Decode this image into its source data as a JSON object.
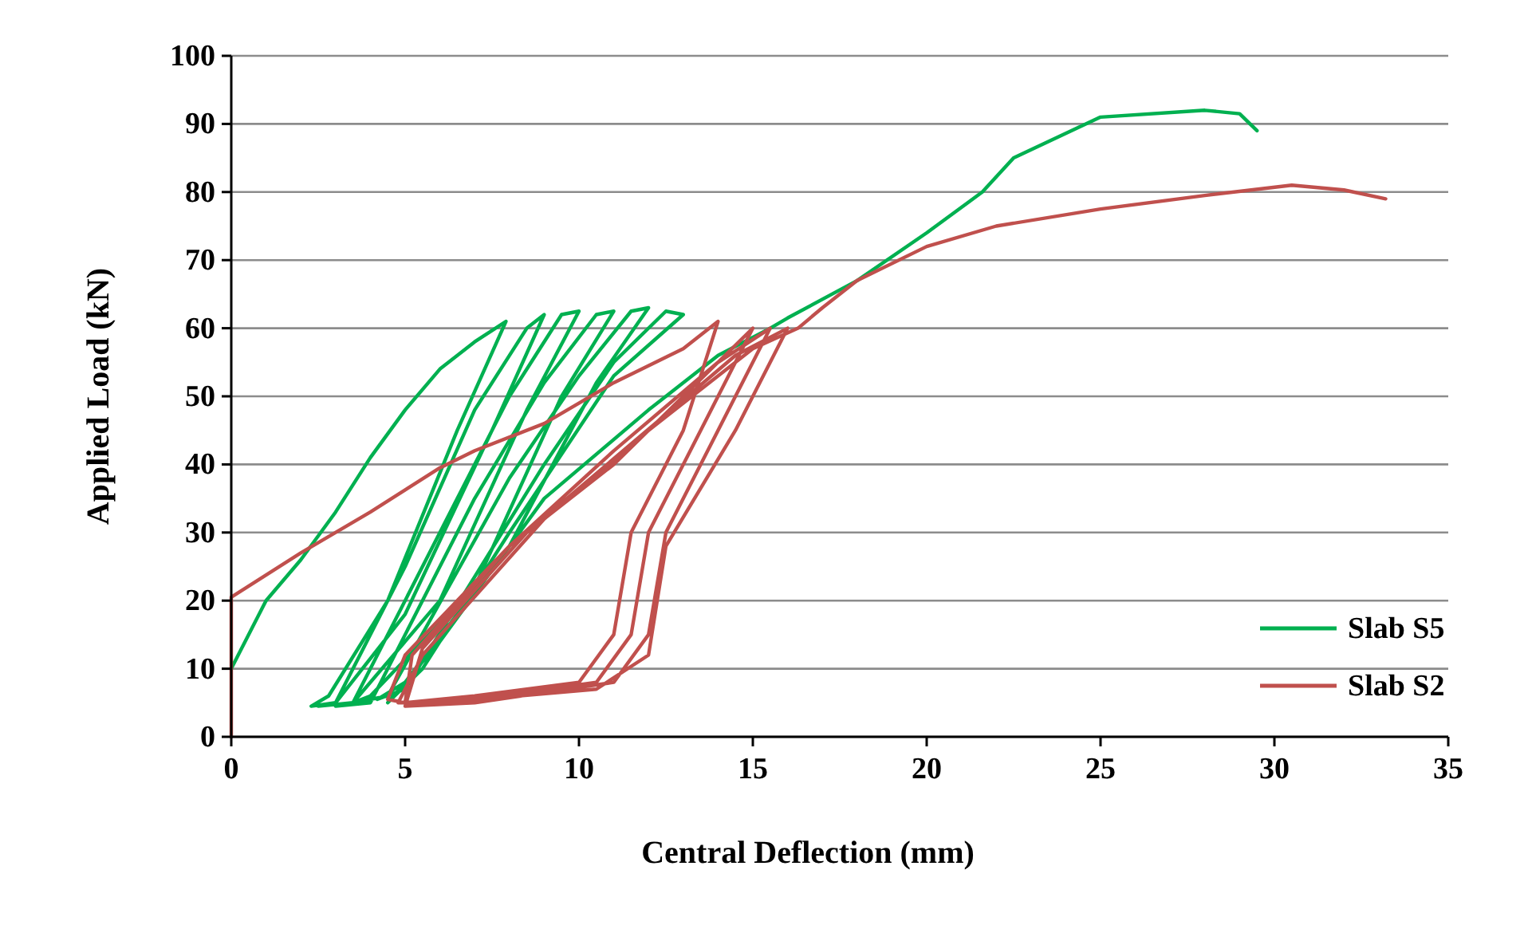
{
  "chart_data": {
    "type": "line",
    "xlabel": "Central Deflection (mm)",
    "ylabel": "Applied Load (kN)",
    "xlim": [
      0,
      35
    ],
    "xticks": [
      0,
      5,
      10,
      15,
      20,
      25,
      30,
      35
    ],
    "ylim": [
      0,
      100
    ],
    "yticks": [
      0,
      10,
      20,
      30,
      40,
      50,
      60,
      70,
      80,
      90,
      100
    ],
    "grid": "y",
    "legend": "right",
    "marker": "none",
    "line_style": "solid",
    "series": [
      {
        "name": "Slab S5",
        "color": "#00b050",
        "x": [
          0,
          1,
          2,
          3,
          4,
          5,
          6,
          7,
          7.9,
          6.5,
          4.5,
          2.8,
          2.3,
          3,
          5,
          7,
          8.5,
          9,
          7.5,
          5,
          3,
          2.5,
          3.5,
          6,
          8,
          9.5,
          10,
          8.5,
          6,
          3.5,
          3,
          4,
          7,
          9,
          10.5,
          11,
          9.5,
          7,
          4,
          3.5,
          4.5,
          8,
          10,
          11.5,
          12,
          10.5,
          8,
          5,
          4.2,
          5,
          9,
          11,
          12.5,
          13,
          11,
          8,
          5.5,
          4.5,
          6,
          9,
          12,
          14,
          15.5,
          16,
          18,
          20,
          21.6,
          22.5,
          25,
          28,
          29,
          29.5
        ],
        "values": [
          10,
          20,
          26,
          33,
          41,
          48,
          54,
          58,
          61,
          45,
          20,
          6,
          4.5,
          5,
          25,
          48,
          60,
          62,
          45,
          18,
          5,
          4.5,
          5,
          30,
          50,
          62,
          62.5,
          48,
          20,
          5,
          4.5,
          5,
          35,
          52,
          62,
          62.5,
          50,
          22,
          6,
          5,
          6,
          38,
          53,
          62.5,
          63,
          52,
          28,
          8,
          5.5,
          7,
          40,
          55,
          62.5,
          62,
          53,
          30,
          10,
          5,
          14,
          35,
          48,
          56,
          60,
          61.5,
          67,
          74,
          80,
          85,
          91,
          92,
          91.5,
          89
        ]
      },
      {
        "name": "Slab S2",
        "color": "#c0504d",
        "x": [
          0,
          0,
          2,
          4,
          6,
          7,
          9,
          11,
          13,
          14,
          13,
          11.5,
          11,
          10,
          7,
          5,
          4.5,
          5,
          8,
          11,
          14,
          15,
          13.5,
          12,
          11.5,
          10.5,
          7,
          5,
          5.2,
          8,
          11,
          14,
          15.5,
          14,
          12.5,
          12,
          11,
          7,
          5,
          5.5,
          8.5,
          11.5,
          14.5,
          16,
          14.5,
          12.5,
          12,
          10.5,
          6,
          4.8,
          5.5,
          9,
          12,
          15,
          16.3,
          17,
          18,
          20,
          22,
          25,
          28,
          30.5,
          32,
          33.2
        ],
        "values": [
          0,
          20.5,
          27,
          33,
          39.5,
          42,
          46,
          52,
          57,
          61,
          45,
          30,
          15,
          8,
          6,
          5,
          5.5,
          12,
          28,
          40,
          55,
          60,
          45,
          30,
          15,
          8,
          5.5,
          5,
          12,
          28,
          42,
          55,
          60,
          45,
          30,
          15,
          8,
          5,
          4.5,
          13,
          30,
          43,
          56,
          60,
          45,
          28,
          12,
          7,
          5,
          5,
          12,
          32,
          45,
          57,
          60,
          63,
          67,
          72,
          75,
          77.5,
          79.5,
          81,
          80.3,
          79
        ]
      }
    ]
  }
}
